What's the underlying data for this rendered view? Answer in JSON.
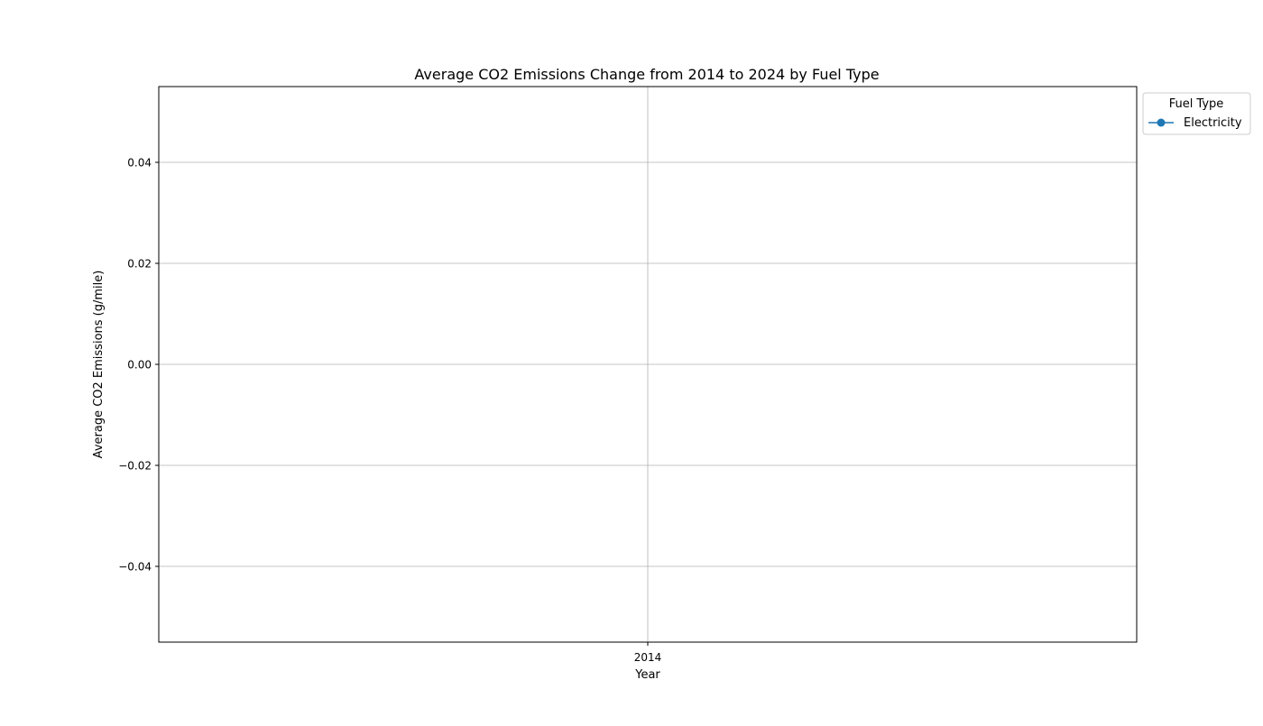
{
  "chart_data": {
    "type": "line",
    "title": "Average CO2 Emissions Change from 2014 to 2024 by Fuel Type",
    "xlabel": "Year",
    "ylabel": "Average CO2 Emissions (g/mile)",
    "x_ticks": [
      "2014"
    ],
    "y_ticks": [
      0.04,
      0.02,
      0.0,
      -0.02,
      -0.04
    ],
    "y_tick_labels": [
      "0.04",
      "0.02",
      "0.00",
      "−0.02",
      "−0.04"
    ],
    "ylim": [
      -0.055,
      0.055
    ],
    "x": [
      "2014"
    ],
    "series": [
      {
        "name": "Electricity",
        "values": [
          null
        ],
        "color": "#1f77b4",
        "marker": "circle"
      }
    ],
    "legend": {
      "title": "Fuel Type",
      "placement": "outside-top-right"
    },
    "grid": true
  }
}
